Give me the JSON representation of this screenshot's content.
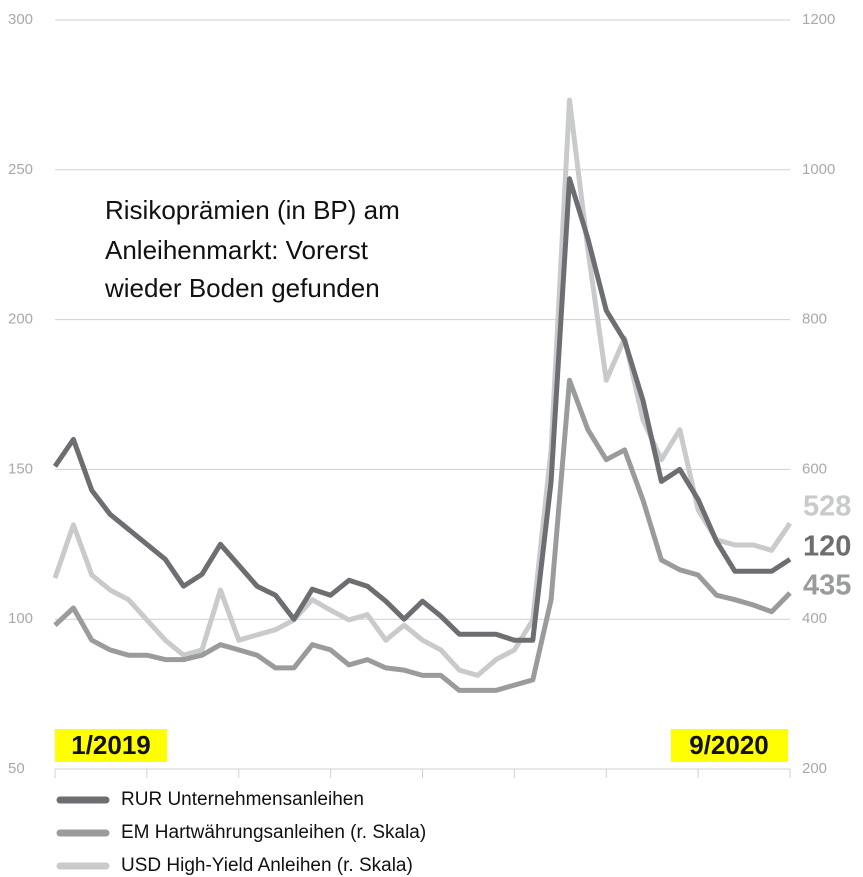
{
  "chart_data": {
    "type": "line",
    "title": [
      "Risikoprämien (in BP) am",
      "Anleihenmarkt: Vorerst",
      "wieder Boden gefunden"
    ],
    "annotations": [
      "1/2019",
      "9/2020"
    ],
    "x": [
      0,
      2,
      4,
      6,
      8,
      10,
      12,
      14,
      16,
      18,
      20,
      22,
      24,
      26,
      28,
      30,
      32,
      34,
      36,
      38,
      40,
      42,
      44,
      46,
      48,
      50,
      52,
      54,
      56,
      58,
      60,
      62,
      64,
      66,
      68,
      70,
      72,
      74,
      76,
      78,
      80
    ],
    "xlim": [
      0,
      80
    ],
    "xticks": [
      0,
      10,
      20,
      30,
      40,
      50,
      60,
      70,
      80
    ],
    "ylim": [
      50,
      300
    ],
    "yticks": [
      50,
      100,
      150,
      200,
      250,
      300
    ],
    "y2lim": [
      200,
      1200
    ],
    "y2ticks": [
      200,
      400,
      600,
      800,
      1000,
      1200
    ],
    "grid": true,
    "series": [
      {
        "name": "RUR Unternehmensanleihen",
        "color": "#6d6e71",
        "axis": "y",
        "values": [
          151,
          160,
          143,
          135,
          130,
          125,
          120,
          111,
          115,
          125,
          118,
          111,
          108,
          100,
          110,
          108,
          113,
          111,
          106,
          100,
          106,
          101,
          95,
          95,
          95,
          93,
          93,
          146,
          247,
          227,
          203,
          193,
          173,
          146,
          150,
          140,
          126,
          116,
          116,
          116,
          120
        ]
      },
      {
        "name": "EM Hartwährungsanleihen (r. Skala)",
        "color": "#9a9b9d",
        "axis": "y2",
        "values": [
          392,
          415,
          372,
          359,
          352,
          352,
          346,
          346,
          352,
          366,
          359,
          352,
          335,
          335,
          366,
          359,
          339,
          346,
          335,
          332,
          325,
          325,
          305,
          305,
          305,
          312,
          319,
          426,
          719,
          653,
          613,
          626,
          559,
          479,
          466,
          459,
          432,
          426,
          419,
          410,
          435
        ]
      },
      {
        "name": "USD High-Yield Anleihen (r. Skala)",
        "color": "#c9cacc",
        "axis": "y2",
        "values": [
          455,
          526,
          459,
          439,
          426,
          399,
          372,
          352,
          359,
          439,
          372,
          379,
          386,
          399,
          426,
          412,
          399,
          406,
          372,
          392,
          372,
          359,
          332,
          325,
          346,
          359,
          399,
          626,
          1093,
          893,
          719,
          775,
          666,
          613,
          653,
          546,
          506,
          499,
          499,
          492,
          528
        ]
      }
    ]
  }
}
